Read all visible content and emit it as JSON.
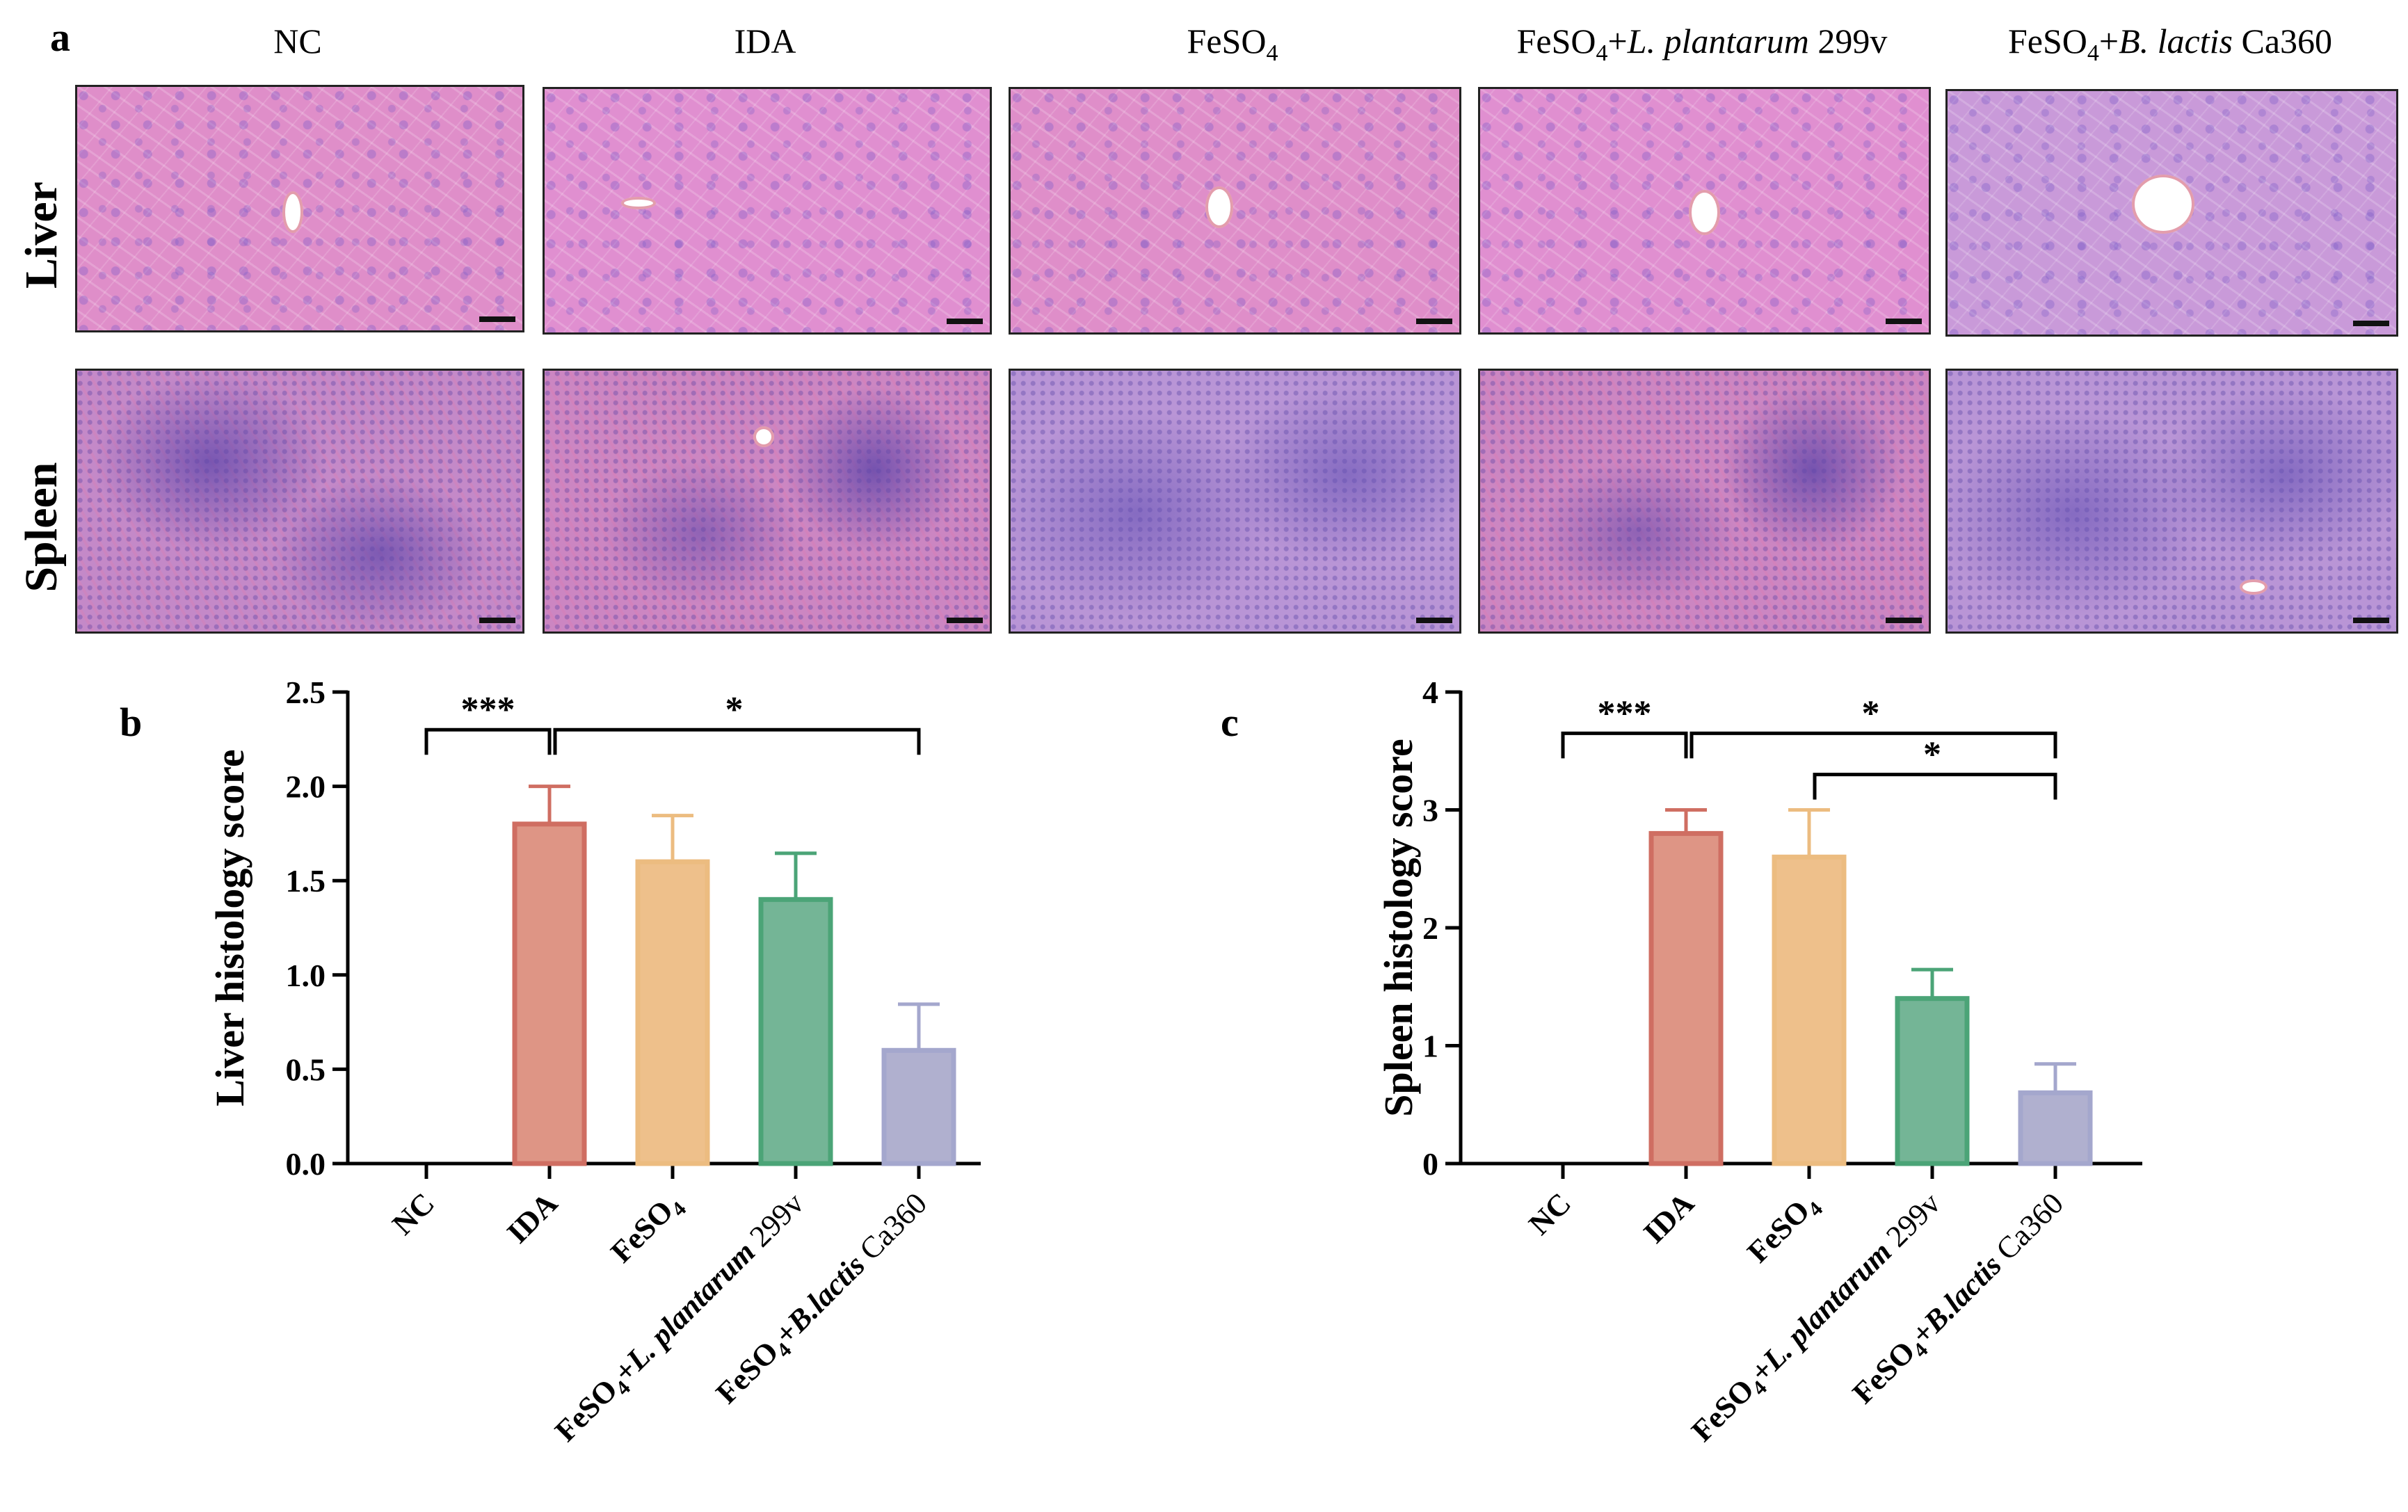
{
  "panel_a": {
    "letter": "a",
    "columns": [
      {
        "prefix": "NC",
        "sub": "",
        "plus": "",
        "species": "",
        "strain": ""
      },
      {
        "prefix": "IDA",
        "sub": "",
        "plus": "",
        "species": "",
        "strain": ""
      },
      {
        "prefix": "FeSO",
        "sub": "4",
        "plus": "",
        "species": "",
        "strain": ""
      },
      {
        "prefix": "FeSO",
        "sub": "4",
        "plus": "+",
        "species": "L. plantarum",
        "strain": " 299v"
      },
      {
        "prefix": "FeSO",
        "sub": "4",
        "plus": "+",
        "species": "B. lactis",
        "strain": " Ca360"
      }
    ],
    "rows": [
      "Liver",
      "Spleen"
    ]
  },
  "chart_data": [
    {
      "panel": "b",
      "type": "bar",
      "ylabel": "Liver histology score",
      "ylim": [
        0,
        2.5
      ],
      "yticks": [
        "0.0",
        "0.5",
        "1.0",
        "1.5",
        "2.0",
        "2.5"
      ],
      "ytick_values": [
        0,
        0.5,
        1.0,
        1.5,
        2.0,
        2.5
      ],
      "categories": [
        {
          "prefix": "NC",
          "sub": "",
          "plus": "",
          "species": "",
          "strain": ""
        },
        {
          "prefix": "IDA",
          "sub": "",
          "plus": "",
          "species": "",
          "strain": ""
        },
        {
          "prefix": "FeSO",
          "sub": "4",
          "plus": "",
          "species": "",
          "strain": ""
        },
        {
          "prefix": "FeSO",
          "sub": "4",
          "plus": "+",
          "species": "L. plantarum",
          "strain": " 299v"
        },
        {
          "prefix": "FeSO",
          "sub": "4",
          "plus": "+",
          "species": "B.lactis",
          "strain": " Ca360"
        }
      ],
      "values": [
        0,
        1.8,
        1.6,
        1.4,
        0.6
      ],
      "errors": [
        0,
        0.2,
        0.245,
        0.245,
        0.245
      ],
      "significance": [
        {
          "from": 0,
          "to": 1,
          "label": "***",
          "level": 2.3
        },
        {
          "from": 1,
          "to": 4,
          "label": "*",
          "level": 2.3
        }
      ]
    },
    {
      "panel": "c",
      "type": "bar",
      "ylabel": "Spleen histology score",
      "ylim": [
        0,
        4
      ],
      "yticks": [
        "0",
        "1",
        "2",
        "3",
        "4"
      ],
      "ytick_values": [
        0,
        1,
        2,
        3,
        4
      ],
      "categories": [
        {
          "prefix": "NC",
          "sub": "",
          "plus": "",
          "species": "",
          "strain": ""
        },
        {
          "prefix": "IDA",
          "sub": "",
          "plus": "",
          "species": "",
          "strain": ""
        },
        {
          "prefix": "FeSO",
          "sub": "4",
          "plus": "",
          "species": "",
          "strain": ""
        },
        {
          "prefix": "FeSO",
          "sub": "4",
          "plus": "+",
          "species": "L. plantarum",
          "strain": " 299v"
        },
        {
          "prefix": "FeSO",
          "sub": "4",
          "plus": "+",
          "species": "B.lactis",
          "strain": " Ca360"
        }
      ],
      "values": [
        0,
        2.8,
        2.6,
        1.4,
        0.6
      ],
      "errors": [
        0,
        0.2,
        0.4,
        0.245,
        0.245
      ],
      "significance": [
        {
          "from": 0,
          "to": 1,
          "label": "***",
          "level": 3.65
        },
        {
          "from": 1,
          "to": 4,
          "label": "*",
          "level": 3.65
        },
        {
          "from": 2,
          "to": 4,
          "label": "*",
          "level": 3.3
        }
      ]
    }
  ],
  "colors": {
    "fills": [
      "#ffffff",
      "#de9585",
      "#eec08b",
      "#74b596",
      "#b0b0cf"
    ],
    "edges": [
      "#ffffff",
      "#cf6e62",
      "#ecbc80",
      "#4ba477",
      "#a4a7cd"
    ]
  }
}
